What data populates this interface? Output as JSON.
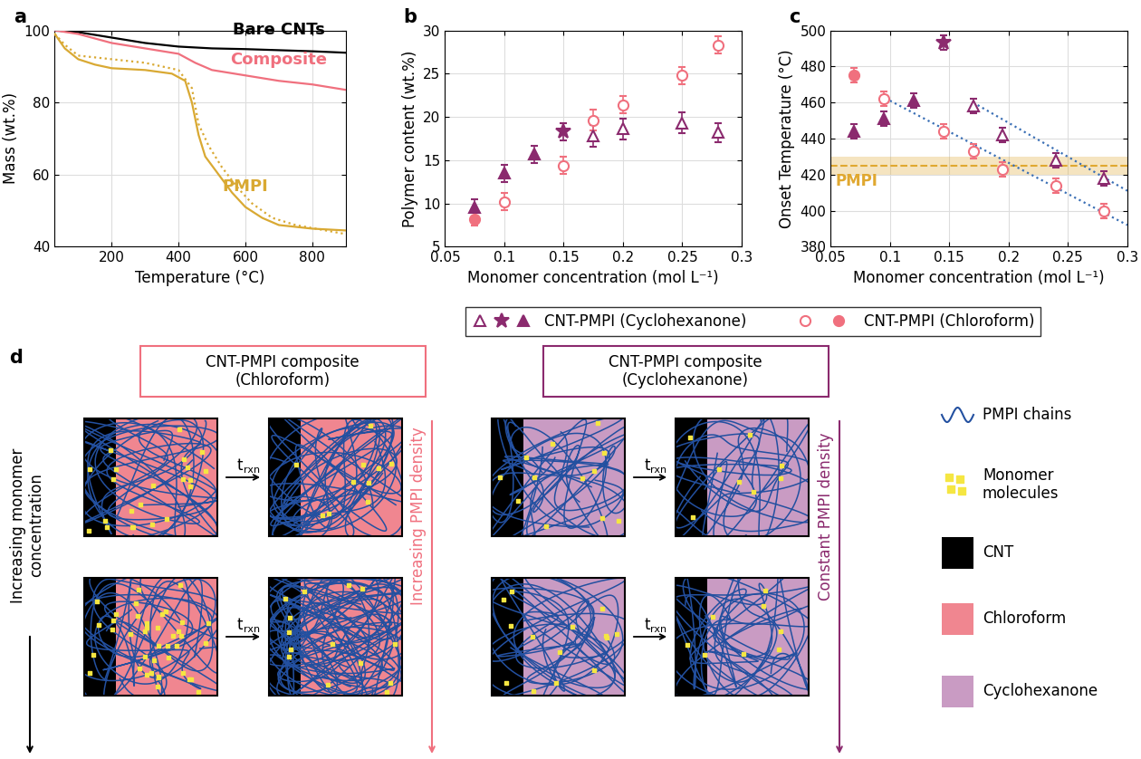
{
  "chart_data": [
    {
      "type": "line",
      "title": "a",
      "x_label": "Temperature (°C)",
      "y_label": "Mass (wt.%)",
      "xlim": [
        30,
        900
      ],
      "xticks": [
        200,
        400,
        600,
        800
      ],
      "ylim": [
        40,
        100
      ],
      "yticks": [
        40,
        60,
        80,
        100
      ],
      "grid": true,
      "series": [
        {
          "name": "Bare CNTs",
          "color": "#000000",
          "line_style": "solid",
          "x": [
            30,
            100,
            200,
            300,
            400,
            500,
            600,
            700,
            800,
            900
          ],
          "values": [
            100,
            99.5,
            98,
            96.5,
            95.5,
            95,
            94.8,
            94.5,
            94.2,
            93.8
          ]
        },
        {
          "name": "Composite",
          "color": "#f0707e",
          "line_style": "solid",
          "x": [
            30,
            100,
            200,
            300,
            400,
            450,
            500,
            600,
            700,
            800,
            900
          ],
          "values": [
            100,
            99,
            96.5,
            95,
            93.5,
            91,
            89,
            87.5,
            86,
            85,
            83.5
          ]
        },
        {
          "name": "PMPI",
          "color": "#d9a933",
          "line_style": "solid",
          "x": [
            30,
            60,
            100,
            150,
            200,
            300,
            380,
            420,
            440,
            460,
            480,
            520,
            560,
            600,
            650,
            700,
            800,
            900
          ],
          "values": [
            99,
            95,
            92,
            90.5,
            89.5,
            89,
            88,
            86,
            80,
            71,
            65,
            60,
            55,
            51,
            48,
            46,
            45,
            44.5
          ]
        },
        {
          "color": "#d9a933",
          "line_style": "dotted",
          "x": [
            30,
            60,
            100,
            200,
            300,
            400,
            440,
            460,
            490,
            530,
            580,
            620,
            680,
            750,
            900
          ],
          "values": [
            99,
            96,
            93,
            92,
            91,
            89,
            84,
            74,
            68,
            62,
            56,
            52,
            48,
            46,
            43.5
          ]
        }
      ]
    },
    {
      "type": "scatter",
      "title": "b",
      "x_label": "Monomer concentration (mol L⁻¹)",
      "y_label": "Polymer content (wt.%)",
      "xlim": [
        0.05,
        0.3
      ],
      "xticks": [
        0.05,
        0.1,
        0.15,
        0.2,
        0.25,
        0.3
      ],
      "ylim": [
        5,
        30
      ],
      "yticks": [
        5,
        10,
        15,
        20,
        25,
        30
      ],
      "grid": true,
      "legend": "upper center",
      "series": [
        {
          "name": "CNT-PMPI (Cyclohexanone)",
          "color": "#8b2a6e",
          "marker": "open_triangle",
          "x": [
            0.175,
            0.2,
            0.25,
            0.28
          ],
          "values": [
            17.8,
            18.6,
            19.3,
            18.2
          ],
          "errors": [
            1.3,
            1.2,
            1.2,
            1.1
          ]
        },
        {
          "name": "CNT-PMPI (Cyclohexanone)",
          "color": "#8b2a6e",
          "marker": "star",
          "x": [
            0.15
          ],
          "values": [
            18.3
          ],
          "errors": [
            1.0
          ]
        },
        {
          "name": "CNT-PMPI (Cyclohexanone)",
          "color": "#8b2a6e",
          "marker": "filled_triangle",
          "x": [
            0.075,
            0.1,
            0.125
          ],
          "values": [
            9.5,
            13.5,
            15.7
          ],
          "errors": [
            1.0,
            1.0,
            1.0
          ]
        },
        {
          "name": "CNT-PMPI (Chloroform)",
          "color": "#f0707e",
          "marker": "open_circle",
          "x": [
            0.1,
            0.15,
            0.175,
            0.2,
            0.25,
            0.28
          ],
          "values": [
            10.2,
            14.4,
            19.6,
            21.4,
            24.8,
            28.3
          ],
          "errors": [
            1.0,
            1.0,
            1.2,
            1.0,
            1.0,
            1.0
          ]
        },
        {
          "name": "CNT-PMPI (Chloroform)",
          "color": "#f0707e",
          "marker": "filled_circle",
          "x": [
            0.075
          ],
          "values": [
            8.2
          ],
          "errors": [
            0.8
          ]
        }
      ]
    },
    {
      "type": "scatter",
      "title": "c",
      "x_label": "Monomer concentration (mol L⁻¹)",
      "y_label": "Onset Temperature (°C)",
      "xlim": [
        0.05,
        0.3
      ],
      "xticks": [
        0.05,
        0.1,
        0.15,
        0.2,
        0.25,
        0.3
      ],
      "ylim": [
        380,
        500
      ],
      "yticks": [
        380,
        400,
        420,
        440,
        460,
        480,
        500
      ],
      "grid": true,
      "reference": {
        "label": "PMPI",
        "value": 425,
        "band": [
          420,
          430
        ],
        "color": "#e0a830",
        "line_style": "dashed"
      },
      "series": [
        {
          "name": "CNT-PMPI (Cyclohexanone)",
          "color": "#8b2a6e",
          "marker": "open_triangle",
          "x": [
            0.17,
            0.195,
            0.24,
            0.28
          ],
          "values": [
            458,
            442,
            428,
            418
          ],
          "errors": [
            4,
            4,
            4,
            4
          ]
        },
        {
          "name": "CNT-PMPI (Cyclohexanone)",
          "color": "#8b2a6e",
          "marker": "star",
          "x": [
            0.145
          ],
          "values": [
            493
          ],
          "errors": [
            4
          ]
        },
        {
          "name": "CNT-PMPI (Cyclohexanone)",
          "color": "#8b2a6e",
          "marker": "filled_triangle",
          "x": [
            0.07,
            0.095,
            0.12
          ],
          "values": [
            444,
            451,
            461
          ],
          "errors": [
            4,
            4,
            4
          ]
        },
        {
          "name": "CNT-PMPI (Chloroform)",
          "color": "#f0707e",
          "marker": "open_circle",
          "x": [
            0.095,
            0.145,
            0.17,
            0.195,
            0.24,
            0.28
          ],
          "values": [
            462,
            444,
            433,
            423,
            414,
            400
          ],
          "errors": [
            4,
            4,
            4,
            4,
            4,
            4
          ]
        },
        {
          "name": "CNT-PMPI (Chloroform)",
          "color": "#f0707e",
          "marker": "filled_circle",
          "x": [
            0.07
          ],
          "values": [
            475
          ],
          "errors": [
            4
          ]
        },
        {
          "type": "line",
          "color": "#3a6fb5",
          "line_style": "dotted",
          "x": [
            0.1,
            0.3
          ],
          "values": [
            461,
            392
          ]
        },
        {
          "type": "line",
          "color": "#3a6fb5",
          "line_style": "dotted",
          "x": [
            0.17,
            0.3
          ],
          "values": [
            460,
            411
          ]
        }
      ]
    }
  ],
  "diagram": {
    "title": "d",
    "axis_label": [
      "Increasing monomer",
      "concentration"
    ],
    "arrow_label": {
      "main": "t",
      "sub": "rxn"
    },
    "panels": [
      {
        "header": [
          "CNT-PMPI composite",
          "(Chloroform)"
        ],
        "solvent_color": "#f08690",
        "text_color": "#f0707e",
        "side_label": "Increasing PMPI density"
      },
      {
        "header": [
          "CNT-PMPI composite",
          "(Cyclohexanone)"
        ],
        "solvent_color": "#c99bc3",
        "text_color": "#8b2a6e",
        "side_label": "Constant PMPI density"
      }
    ],
    "legend": [
      {
        "label": [
          "PMPI chains"
        ],
        "color": "#2350a0"
      },
      {
        "label": [
          "Monomer",
          "molecules"
        ],
        "color": "#f5e642"
      },
      {
        "label": [
          "CNT"
        ],
        "color": "#000000"
      },
      {
        "label": [
          "Chloroform"
        ],
        "color": "#f08690"
      },
      {
        "label": [
          "Cyclohexanone"
        ],
        "color": "#c99bc3"
      }
    ]
  }
}
